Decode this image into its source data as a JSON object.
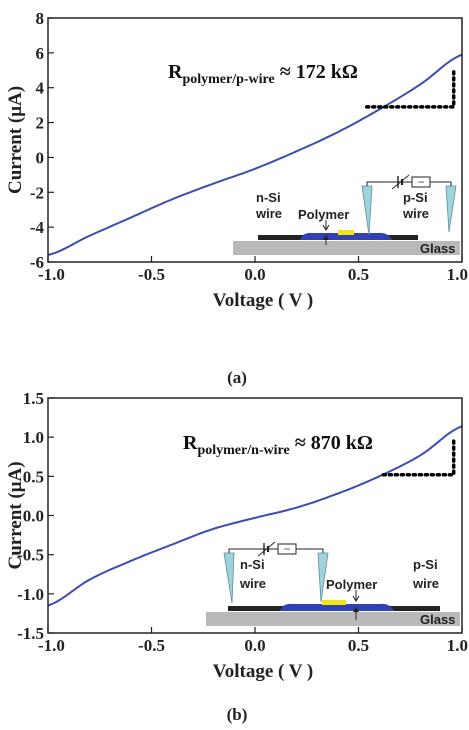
{
  "chart_data": [
    {
      "type": "line",
      "panel_label": "(a)",
      "xlabel": "Voltage ( V )",
      "ylabel": "Current (μA)",
      "xlim": [
        -1.0,
        1.0
      ],
      "ylim": [
        -6,
        8
      ],
      "xticks": [
        "-1.0",
        "-0.5",
        "0.0",
        "0.5",
        "1.0"
      ],
      "xtick_values": [
        -1.0,
        -0.5,
        0.0,
        0.5,
        1.0
      ],
      "yticks": [
        "-6",
        "-4",
        "-2",
        "0",
        "2",
        "4",
        "6",
        "8"
      ],
      "ytick_values": [
        -6,
        -4,
        -2,
        0,
        2,
        4,
        6,
        8
      ],
      "series": [
        {
          "color": "#3a4fb0",
          "x": [
            -1.0,
            -0.8,
            -0.6,
            -0.4,
            -0.2,
            0.0,
            0.2,
            0.4,
            0.6,
            0.8,
            1.0
          ],
          "y": [
            -5.6,
            -4.5,
            -3.45,
            -2.4,
            -1.5,
            -0.65,
            0.35,
            1.45,
            2.75,
            4.2,
            5.9
          ]
        }
      ],
      "annotation": {
        "main": "R",
        "sub": "polymer/p-wire",
        "value": " ≈ 172 kΩ"
      },
      "slope_marker": {
        "x1": 0.54,
        "y_bottom": 2.9,
        "x2": 0.96,
        "y_top": 5.05
      },
      "inset": {
        "labels": {
          "left_wire": [
            "n-Si",
            "wire"
          ],
          "right_wire": [
            "p-Si",
            "wire"
          ],
          "polymer": "Polymer",
          "substrate": "Glass"
        }
      }
    },
    {
      "type": "line",
      "panel_label": "(b)",
      "xlabel": "Voltage ( V )",
      "ylabel": "Current (μA)",
      "xlim": [
        -1.0,
        1.0
      ],
      "ylim": [
        -1.5,
        1.5
      ],
      "xticks": [
        "-1.0",
        "-0.5",
        "0.0",
        "0.5",
        "1.0"
      ],
      "xtick_values": [
        -1.0,
        -0.5,
        0.0,
        0.5,
        1.0
      ],
      "yticks": [
        "-1.5",
        "-1.0",
        "-0.5",
        "0.0",
        "0.5",
        "1.0",
        "1.5"
      ],
      "ytick_values": [
        -1.5,
        -1.0,
        -0.5,
        0.0,
        0.5,
        1.0,
        1.5
      ],
      "series": [
        {
          "color": "#3a4fb0",
          "x": [
            -1.0,
            -0.8,
            -0.6,
            -0.4,
            -0.2,
            0.0,
            0.2,
            0.4,
            0.6,
            0.8,
            1.0
          ],
          "y": [
            -1.15,
            -0.82,
            -0.58,
            -0.37,
            -0.17,
            -0.03,
            0.1,
            0.28,
            0.5,
            0.77,
            1.14
          ]
        }
      ],
      "annotation": {
        "main": "R",
        "sub": "polymer/n-wire",
        "value": " ≈ 870 kΩ"
      },
      "slope_marker": {
        "x1": 0.62,
        "y_bottom": 0.52,
        "x2": 0.96,
        "y_top": 1.0
      },
      "inset": {
        "labels": {
          "left_wire": [
            "n-Si",
            "wire"
          ],
          "right_wire": [
            "p-Si",
            "wire"
          ],
          "polymer": "Polymer",
          "substrate": "Glass"
        }
      }
    }
  ]
}
